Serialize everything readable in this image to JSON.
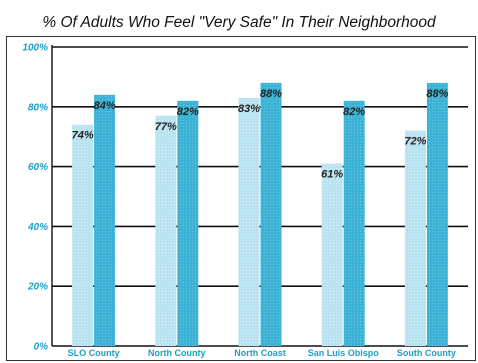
{
  "chart_data": {
    "type": "bar",
    "title": "% Of Adults Who Feel \"Very Safe\" In Their Neighborhood",
    "categories": [
      "SLO County",
      "North County",
      "North Coast",
      "San Luis Obispo",
      "South County"
    ],
    "series": [
      {
        "values": [
          74,
          77,
          83,
          61,
          72
        ],
        "color": "#b9e3f0"
      },
      {
        "values": [
          84,
          82,
          88,
          82,
          88
        ],
        "color": "#3cb3d6"
      }
    ],
    "value_labels": [
      [
        "74%",
        "77%",
        "83%",
        "61%",
        "72%"
      ],
      [
        "84%",
        "82%",
        "88%",
        "82%",
        "88%"
      ]
    ],
    "ylim": [
      0,
      100
    ],
    "yticks": [
      0,
      20,
      40,
      60,
      80,
      100
    ],
    "ytick_labels": [
      "0%",
      "20%",
      "40%",
      "60%",
      "80%",
      "100%"
    ],
    "grid": true,
    "legend": "none"
  }
}
